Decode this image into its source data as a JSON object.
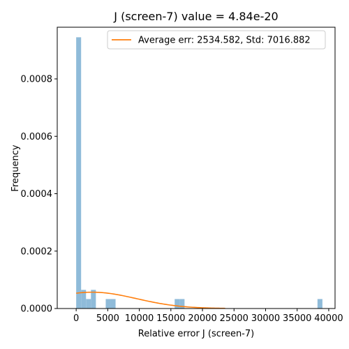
{
  "chart_data": {
    "type": "histogram",
    "title": "J (screen-7) value = 4.84e-20",
    "xlabel": "Relative error J (screen-7)",
    "ylabel": "Frequency",
    "xlim": [
      -3000,
      41000
    ],
    "ylim": [
      0,
      0.00098
    ],
    "x_ticks": [
      0,
      5000,
      10000,
      15000,
      20000,
      25000,
      30000,
      35000,
      40000
    ],
    "y_ticks": [
      0,
      0.0002,
      0.0004,
      0.0006,
      0.0008
    ],
    "y_tick_labels": [
      "0.0000",
      "0.0002",
      "0.0004",
      "0.0006",
      "0.0008"
    ],
    "bar_color": "#8fbbd9",
    "line_color": "#ff7f0e",
    "bins": [
      {
        "x0": 0,
        "x1": 780,
        "value": 0.000945
      },
      {
        "x0": 780,
        "x1": 1560,
        "value": 6.5e-05
      },
      {
        "x0": 1560,
        "x1": 2340,
        "value": 3.3e-05
      },
      {
        "x0": 2340,
        "x1": 3120,
        "value": 6.5e-05
      },
      {
        "x0": 4680,
        "x1": 5460,
        "value": 3.3e-05
      },
      {
        "x0": 5460,
        "x1": 6240,
        "value": 3.3e-05
      },
      {
        "x0": 15600,
        "x1": 16380,
        "value": 3.3e-05
      },
      {
        "x0": 16380,
        "x1": 17160,
        "value": 3.3e-05
      },
      {
        "x0": 38220,
        "x1": 39000,
        "value": 3.3e-05
      }
    ],
    "fit_curve": {
      "mean": 2534.582,
      "std": 7016.882,
      "x_range": [
        0,
        23600
      ]
    },
    "legend": {
      "placement": "top-right",
      "entries": [
        {
          "label": "Average err: 2534.582, Std: 7016.882"
        }
      ]
    }
  }
}
